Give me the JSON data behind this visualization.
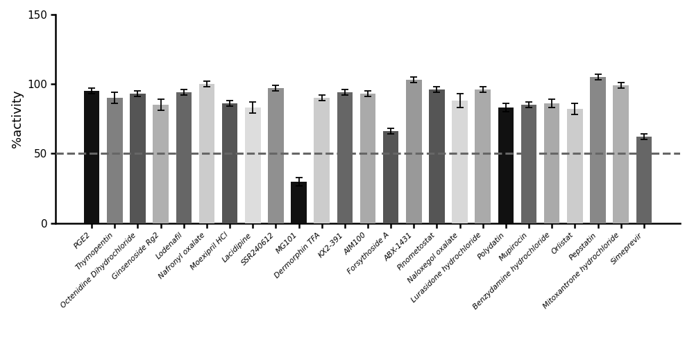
{
  "categories": [
    "PGE2",
    "Thymopentin",
    "Octenidine Dihydrochloride",
    "Ginsenoside Rg2",
    "Lodenafil",
    "Nafronyl oxalate",
    "Moexipril HCl",
    "Lacidipine",
    "SSR240612",
    "MG101",
    "Dermorphin TFA",
    "KX2-391",
    "AIM100",
    "Forsythoside A",
    "ABX-1431",
    "Pinometostat",
    "Naloxegol oxalate",
    "Lurasidone hydrochloride",
    "Polydatin",
    "Mupirocin",
    "Benzydamine hydrochloride",
    "Orlistat",
    "Pepstatin",
    "Mitoxantrone hydrochloride",
    "Simeprevir"
  ],
  "values": [
    95,
    90,
    93,
    85,
    94,
    100,
    86,
    83,
    97,
    30,
    90,
    94,
    93,
    66,
    103,
    96,
    88,
    96,
    83,
    85,
    86,
    82,
    105,
    99,
    62
  ],
  "errors": [
    2,
    4,
    2,
    4,
    2,
    2,
    2,
    4,
    2,
    3,
    2,
    2,
    2,
    2,
    2,
    2,
    5,
    2,
    3,
    2,
    3,
    4,
    2,
    2,
    2
  ],
  "colors": [
    "#111111",
    "#808080",
    "#555555",
    "#b0b0b0",
    "#666666",
    "#cccccc",
    "#555555",
    "#dddddd",
    "#909090",
    "#111111",
    "#cccccc",
    "#666666",
    "#aaaaaa",
    "#555555",
    "#999999",
    "#555555",
    "#d8d8d8",
    "#aaaaaa",
    "#111111",
    "#666666",
    "#aaaaaa",
    "#cccccc",
    "#888888",
    "#b0b0b0",
    "#666666"
  ],
  "ylabel": "%activity",
  "ylim": [
    0,
    150
  ],
  "yticks": [
    0,
    50,
    100,
    150
  ],
  "dashed_line_y": 50,
  "figsize": [
    10.0,
    5.19
  ],
  "dpi": 100,
  "bar_width": 0.68,
  "ylabel_fontsize": 13,
  "xtick_fontsize": 7.8,
  "ytick_fontsize": 11
}
